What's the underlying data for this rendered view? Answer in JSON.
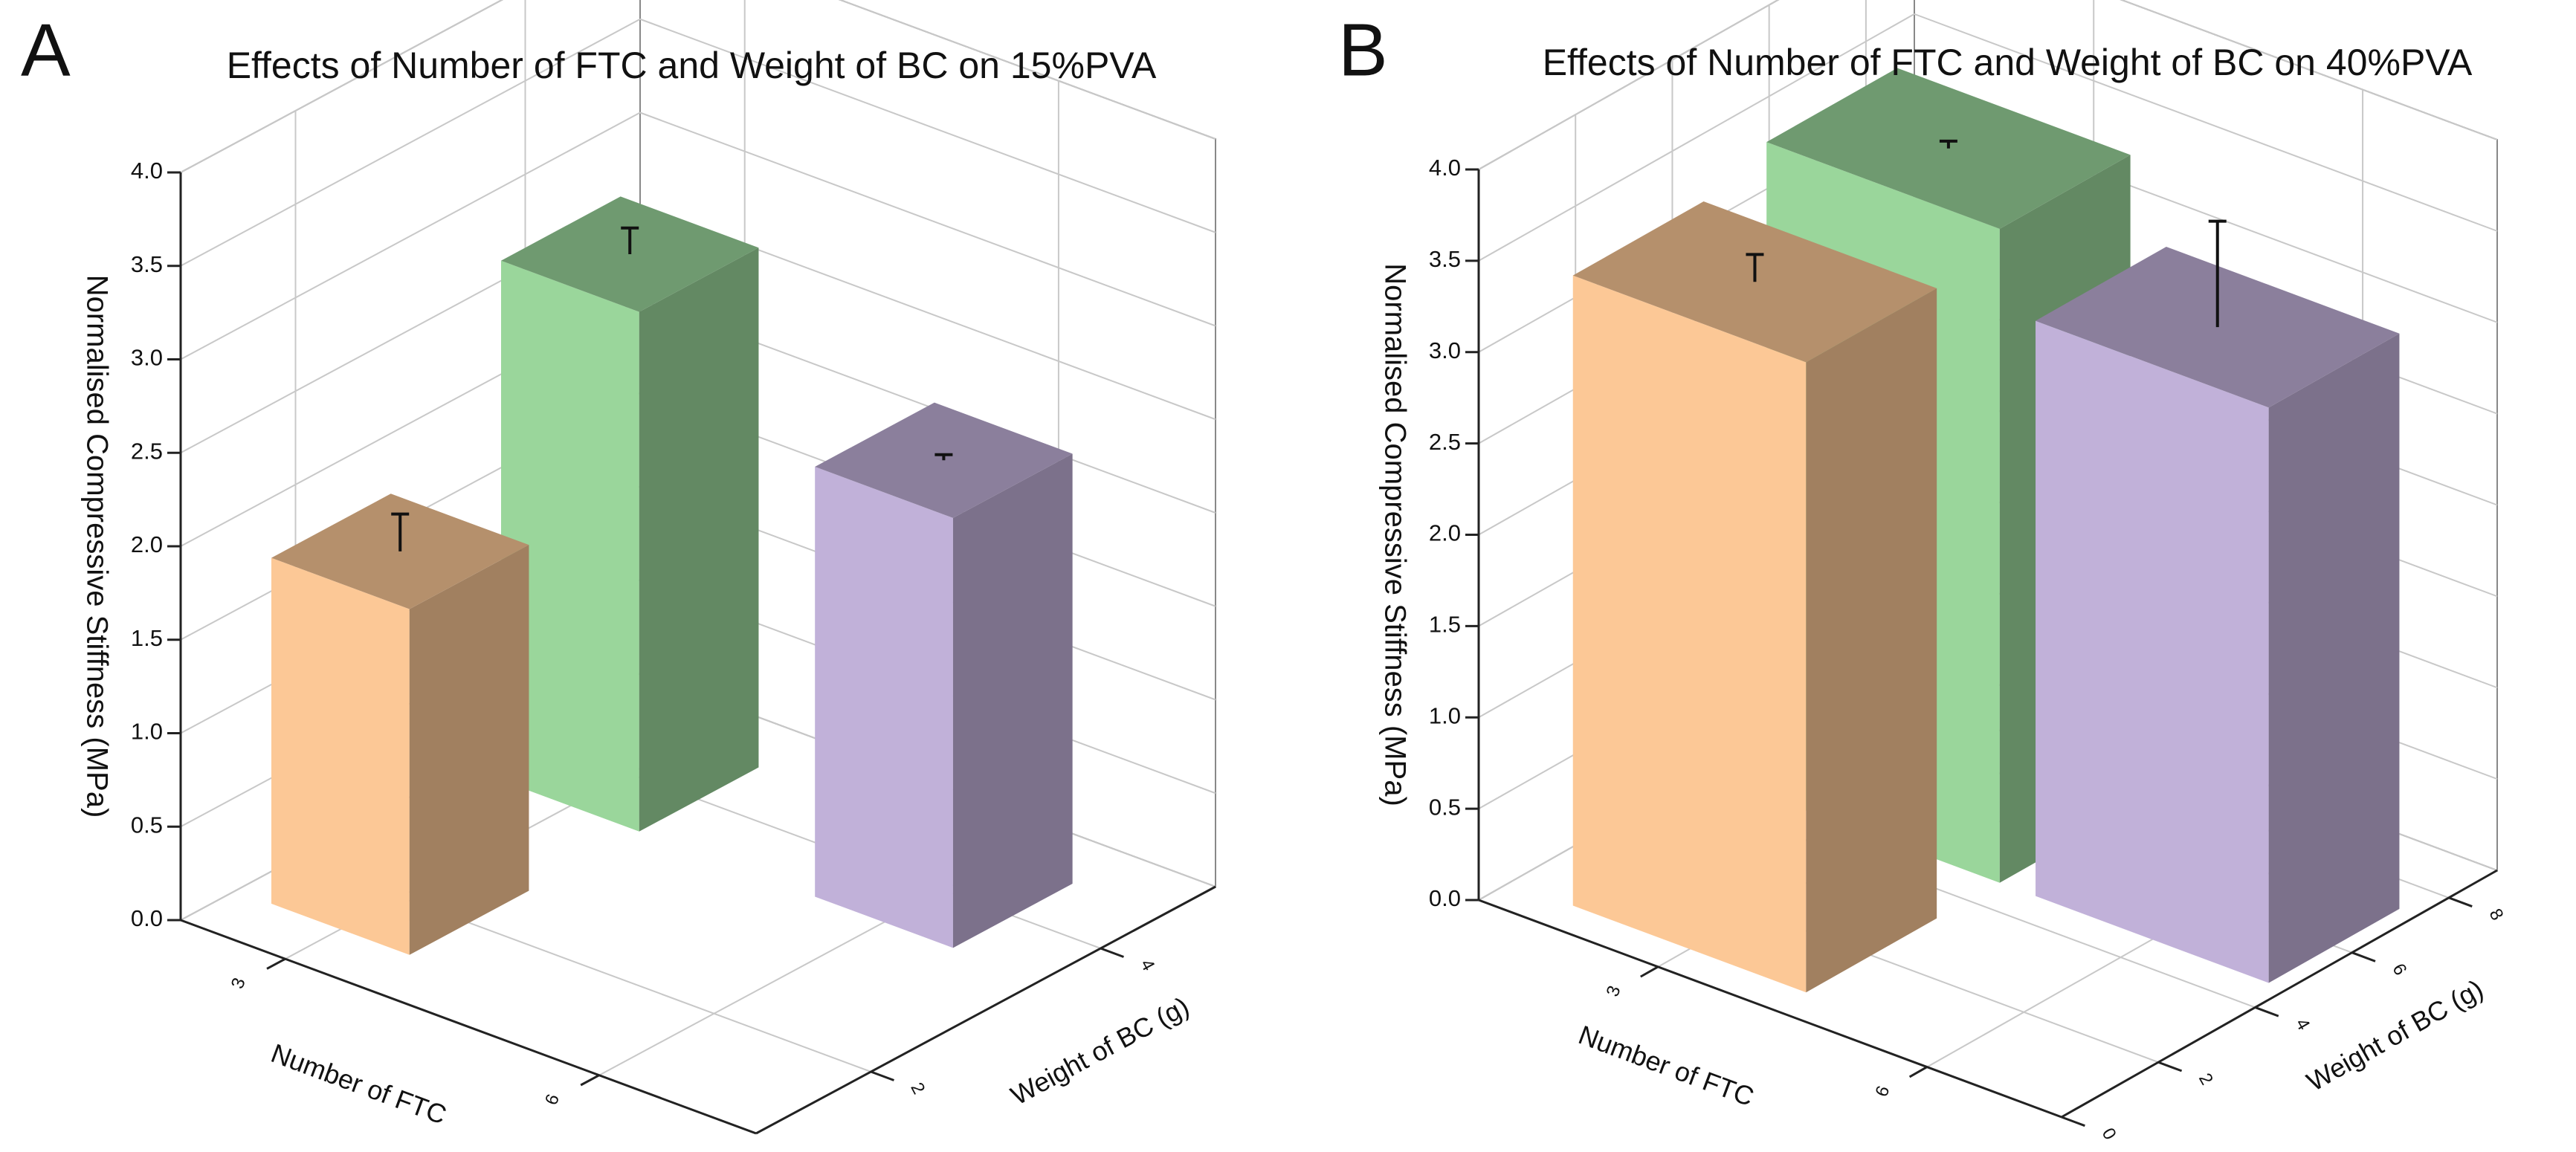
{
  "chart_data": [
    {
      "type": "bar3d",
      "panel": "A",
      "title": "Effects of Number of FTC and Weight of BC on 15%PVA",
      "ylabel": "Normalised Compressive Stiffness (MPa)",
      "xlabel": "Number of FTC",
      "zlabel": "Weight of BC (g)",
      "xlim": [
        2,
        7.5
      ],
      "xticks": [
        3,
        6
      ],
      "zlim": [
        1,
        5
      ],
      "zticks": [
        2,
        4
      ],
      "ylim": [
        0,
        4
      ],
      "yticks": [
        {
          "value": 0,
          "label": "0.0"
        },
        0.5,
        {
          "value": 1,
          "label": "1.0"
        },
        1.5,
        {
          "value": 2,
          "label": "2.0"
        },
        2.5,
        {
          "value": 3,
          "label": "3.0"
        },
        3.5,
        {
          "value": 4,
          "label": "4.0"
        }
      ],
      "grid": true,
      "bars": [
        {
          "x": 3,
          "z": 2,
          "value": 1.85,
          "error": 0.2,
          "color": "#fcc896"
        },
        {
          "x": 3,
          "z": 4,
          "value": 2.78,
          "error": 0.14,
          "color": "#9ad69b"
        },
        {
          "x": 6,
          "z": 4,
          "value": 2.3,
          "error": 0.03,
          "color": "#c1b1d9"
        }
      ]
    },
    {
      "type": "bar3d",
      "panel": "B",
      "title": "Effects of Number of FTC and Weight of BC on 40%PVA",
      "ylabel": "Normalised Compressive Stiffness (MPa)",
      "xlabel": "Number of FTC",
      "zlabel": "Weight of BC (g)",
      "xlim": [
        1,
        7.5
      ],
      "xticks": [
        3,
        6
      ],
      "zlim": [
        0,
        9
      ],
      "zticks": [
        0,
        2,
        4,
        6,
        8
      ],
      "ylim": [
        0,
        4
      ],
      "yticks": [
        {
          "value": 0,
          "label": "0.0"
        },
        0.5,
        {
          "value": 1,
          "label": "1.0"
        },
        1.5,
        {
          "value": 2,
          "label": "2.0"
        },
        2.5,
        {
          "value": 3,
          "label": "3.0"
        },
        3.5,
        {
          "value": 4,
          "label": "4.0"
        }
      ],
      "grid": true,
      "bars": [
        {
          "x": 3,
          "z": 2,
          "value": 3.45,
          "error": 0.15,
          "color": "#fcc896"
        },
        {
          "x": 3,
          "z": 6,
          "value": 3.58,
          "error": 0.04,
          "color": "#9ad69b"
        },
        {
          "x": 6,
          "z": 6,
          "value": 3.15,
          "error": 0.58,
          "color": "#c1b1d9"
        }
      ]
    }
  ]
}
